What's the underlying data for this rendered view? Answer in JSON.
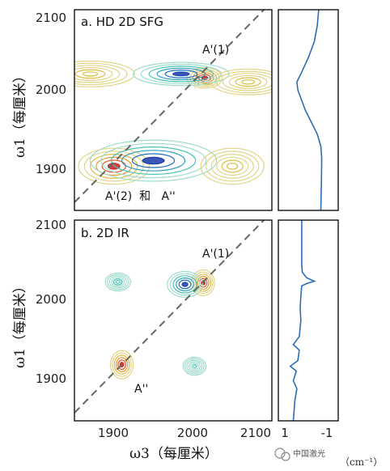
{
  "chart_data": [
    {
      "type": "heatmap",
      "panel": "a",
      "title": "a. HD 2D SFG",
      "xlim": [
        1860,
        2110
      ],
      "ylim": [
        1850,
        2100
      ],
      "y_ticks": [
        "2100",
        "2000",
        "1900"
      ],
      "diagonal": "dashed",
      "annotations": [
        "A'(1)",
        "A'(2)  和   A''"
      ],
      "peaks": [
        {
          "w3": 2025,
          "w1": 2015,
          "sign": "positive",
          "amp": 1.0,
          "sw3": 14,
          "sw1": 8
        },
        {
          "w3": 1995,
          "w1": 2020,
          "sign": "negative",
          "amp": 0.9,
          "sw3": 38,
          "sw1": 9
        },
        {
          "w3": 1910,
          "w1": 1905,
          "sign": "positive",
          "amp": 0.95,
          "sw3": 28,
          "sw1": 14
        },
        {
          "w3": 1960,
          "w1": 1912,
          "sign": "negative",
          "amp": 1.0,
          "sw3": 50,
          "sw1": 16
        },
        {
          "w3": 1880,
          "w1": 2020,
          "sign": "positive",
          "amp": 0.35,
          "sw3": 35,
          "sw1": 10
        },
        {
          "w3": 2080,
          "w1": 2010,
          "sign": "positive",
          "amp": 0.35,
          "sw3": 30,
          "sw1": 10
        },
        {
          "w3": 2060,
          "w1": 1905,
          "sign": "positive",
          "amp": 0.35,
          "sw3": 25,
          "sw1": 14
        }
      ]
    },
    {
      "type": "heatmap",
      "panel": "b",
      "title": "b. 2D IR",
      "xlim": [
        1860,
        2110
      ],
      "ylim": [
        1850,
        2100
      ],
      "x_ticks": [
        "1900",
        "2000",
        "2100"
      ],
      "y_ticks": [
        "2100",
        "2000",
        "1900"
      ],
      "xlabel": "ω3（每厘米）",
      "diagonal": "dashed",
      "annotations": [
        "A'(1)",
        "A''"
      ],
      "peaks": [
        {
          "w3": 2023,
          "w1": 2022,
          "sign": "positive",
          "amp": 1.0,
          "sw3": 9,
          "sw1": 10
        },
        {
          "w3": 2000,
          "w1": 2020,
          "sign": "negative",
          "amp": 0.9,
          "sw3": 14,
          "sw1": 10
        },
        {
          "w3": 1920,
          "w1": 1920,
          "sign": "positive",
          "amp": 0.9,
          "sw3": 9,
          "sw1": 11
        },
        {
          "w3": 1915,
          "w1": 2023,
          "sign": "negative",
          "amp": 0.3,
          "sw3": 10,
          "sw1": 7
        },
        {
          "w3": 2012,
          "w1": 1918,
          "sign": "negative",
          "amp": 0.25,
          "sw3": 9,
          "sw1": 7
        }
      ]
    },
    {
      "type": "line",
      "panel": "a-side",
      "xlim": [
        1,
        -1
      ],
      "ylim": [
        1850,
        2100
      ],
      "points": [
        [
          -0.35,
          2100
        ],
        [
          -0.3,
          2080
        ],
        [
          -0.2,
          2060
        ],
        [
          0.0,
          2040
        ],
        [
          0.25,
          2020
        ],
        [
          0.38,
          2010
        ],
        [
          0.35,
          2000
        ],
        [
          0.25,
          1990
        ],
        [
          0.1,
          1975
        ],
        [
          -0.1,
          1960
        ],
        [
          -0.3,
          1945
        ],
        [
          -0.42,
          1930
        ],
        [
          -0.45,
          1915
        ],
        [
          -0.44,
          1890
        ],
        [
          -0.42,
          1850
        ]
      ]
    },
    {
      "type": "line",
      "panel": "b-side",
      "x_ticks": [
        "1",
        "-1"
      ],
      "xlim": [
        1,
        -1
      ],
      "ylim": [
        1850,
        2100
      ],
      "points": [
        [
          0.22,
          2100
        ],
        [
          0.22,
          2045
        ],
        [
          0.2,
          2035
        ],
        [
          0.05,
          2028
        ],
        [
          -0.2,
          2024
        ],
        [
          0.05,
          2021
        ],
        [
          0.22,
          2018
        ],
        [
          0.25,
          2005
        ],
        [
          0.27,
          1990
        ],
        [
          0.25,
          1975
        ],
        [
          0.3,
          1955
        ],
        [
          0.5,
          1945
        ],
        [
          0.3,
          1938
        ],
        [
          0.35,
          1925
        ],
        [
          0.6,
          1918
        ],
        [
          0.4,
          1912
        ],
        [
          0.5,
          1900
        ],
        [
          0.38,
          1890
        ],
        [
          0.45,
          1875
        ],
        [
          0.5,
          1850
        ]
      ]
    }
  ],
  "y_axis_label": "ω1（每厘米）",
  "unit_label": "（cm⁻¹）",
  "watermark": "中国激光"
}
